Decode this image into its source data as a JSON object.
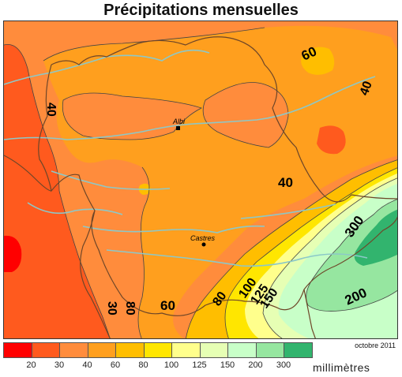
{
  "title": "Précipitations mensuelles",
  "date": "octobre 2011",
  "unit": "millimètres",
  "cities": [
    {
      "name": "Albi"
    },
    {
      "name": "Castres"
    }
  ],
  "contour_labels": [
    "40",
    "60",
    "40",
    "40",
    "60",
    "30",
    "80",
    "100",
    "125",
    "150",
    "200",
    "300"
  ],
  "legend": {
    "colors": [
      "#ff0000",
      "#ff5a1e",
      "#ff8c3c",
      "#ff9f1e",
      "#ffbe00",
      "#ffe600",
      "#ffff8c",
      "#e6ffb4",
      "#c8ffc8",
      "#96e6a0",
      "#32b46e"
    ],
    "ticks": [
      "20",
      "30",
      "40",
      "60",
      "80",
      "100",
      "125",
      "150",
      "200",
      "300"
    ]
  },
  "colors": {
    "lt30": "#ff5a1e",
    "r30_40": "#ff8c3c",
    "r40_60": "#ff9f1e",
    "r60_80": "#ffbe00",
    "r80_100": "#ffe600",
    "r100_125": "#ffff8c",
    "r125_150": "#e6ffb4",
    "r150_200": "#c8ffc8",
    "r200_300": "#96e6a0",
    "gt300": "#32b46e",
    "lt20": "#ff0000",
    "rivers": "#8cc8c8",
    "borders": "#6e4628"
  }
}
